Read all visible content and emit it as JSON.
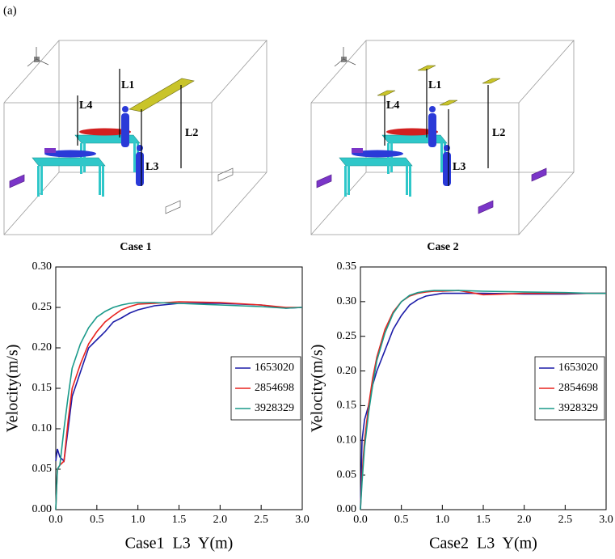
{
  "panel_label": "(a)",
  "diagrams": [
    {
      "caption": "Case 1",
      "line_labels": [
        "L1",
        "L2",
        "L3",
        "L4"
      ]
    },
    {
      "caption": "Case 2",
      "line_labels": [
        "L1",
        "L2",
        "L3",
        "L4"
      ]
    }
  ],
  "chart_data": [
    {
      "type": "line",
      "x_label": "Case1  L3  Y(m)",
      "y_label": "Velocity(m/s)",
      "x": [
        0,
        0.02,
        0.05,
        0.1,
        0.15,
        0.2,
        0.3,
        0.4,
        0.5,
        0.6,
        0.7,
        0.8,
        0.9,
        1.0,
        1.2,
        1.5,
        2.0,
        2.5,
        2.8,
        3.0
      ],
      "series": [
        {
          "name": "1653020",
          "color": "#1c1ca8",
          "values": [
            0.06,
            0.075,
            0.065,
            0.06,
            0.1,
            0.14,
            0.17,
            0.2,
            0.21,
            0.22,
            0.232,
            0.237,
            0.243,
            0.247,
            0.252,
            0.255,
            0.255,
            0.253,
            0.249,
            0.25
          ]
        },
        {
          "name": "2854698",
          "color": "#e8231f",
          "values": [
            0.0,
            0.05,
            0.055,
            0.06,
            0.11,
            0.15,
            0.18,
            0.205,
            0.22,
            0.232,
            0.24,
            0.247,
            0.251,
            0.254,
            0.255,
            0.257,
            0.256,
            0.253,
            0.25,
            0.25
          ]
        },
        {
          "name": "3928329",
          "color": "#1a9a8a",
          "values": [
            0.0,
            0.05,
            0.055,
            0.1,
            0.14,
            0.175,
            0.205,
            0.225,
            0.238,
            0.245,
            0.25,
            0.253,
            0.255,
            0.256,
            0.256,
            0.255,
            0.253,
            0.251,
            0.249,
            0.25
          ]
        }
      ],
      "xlim": [
        0,
        3.0
      ],
      "xticks": [
        {
          "value": 0,
          "label": "0.0"
        },
        {
          "value": 0.5,
          "label": "0.5"
        },
        {
          "value": 1,
          "label": "1.0"
        },
        {
          "value": 1.5,
          "label": "1.5"
        },
        {
          "value": 2,
          "label": "2.0"
        },
        {
          "value": 2.5,
          "label": "2.5"
        },
        {
          "value": 3,
          "label": "3.0"
        }
      ],
      "ylim": [
        0,
        0.3
      ],
      "yticks": [
        {
          "value": 0,
          "label": "0.00"
        },
        {
          "value": 0.05,
          "label": "0.05"
        },
        {
          "value": 0.1,
          "label": "0.10"
        },
        {
          "value": 0.15,
          "label": "0.15"
        },
        {
          "value": 0.2,
          "label": "0.20"
        },
        {
          "value": 0.25,
          "label": "0.25"
        },
        {
          "value": 0.3,
          "label": "0.30"
        }
      ],
      "legend": "center right"
    },
    {
      "type": "line",
      "x_label": "Case2  L3  Y(m)",
      "y_label": "Velocity(m/s)",
      "x": [
        0,
        0.02,
        0.05,
        0.1,
        0.15,
        0.2,
        0.3,
        0.4,
        0.5,
        0.6,
        0.7,
        0.8,
        0.9,
        1.0,
        1.2,
        1.5,
        2.0,
        2.5,
        2.8,
        3.0
      ],
      "series": [
        {
          "name": "1653020",
          "color": "#1c1ca8",
          "values": [
            0.0,
            0.1,
            0.13,
            0.15,
            0.18,
            0.2,
            0.23,
            0.26,
            0.28,
            0.295,
            0.303,
            0.308,
            0.31,
            0.312,
            0.312,
            0.312,
            0.311,
            0.311,
            0.312,
            0.312
          ]
        },
        {
          "name": "2854698",
          "color": "#e8231f",
          "values": [
            0.0,
            0.05,
            0.1,
            0.15,
            0.19,
            0.22,
            0.26,
            0.285,
            0.3,
            0.308,
            0.312,
            0.314,
            0.315,
            0.315,
            0.316,
            0.31,
            0.312,
            0.312,
            0.312,
            0.312
          ]
        },
        {
          "name": "3928329",
          "color": "#1a9a8a",
          "values": [
            0.0,
            0.04,
            0.09,
            0.14,
            0.18,
            0.215,
            0.255,
            0.283,
            0.3,
            0.309,
            0.313,
            0.315,
            0.316,
            0.316,
            0.316,
            0.315,
            0.314,
            0.313,
            0.312,
            0.312
          ]
        }
      ],
      "xlim": [
        0,
        3.0
      ],
      "xticks": [
        {
          "value": 0,
          "label": "0.0"
        },
        {
          "value": 0.5,
          "label": "0.5"
        },
        {
          "value": 1,
          "label": "1.0"
        },
        {
          "value": 1.5,
          "label": "1.5"
        },
        {
          "value": 2,
          "label": "2.0"
        },
        {
          "value": 2.5,
          "label": "2.5"
        },
        {
          "value": 3,
          "label": "3.0"
        }
      ],
      "ylim": [
        0,
        0.35
      ],
      "yticks": [
        {
          "value": 0,
          "label": "0.00"
        },
        {
          "value": 0.05,
          "label": "0.05"
        },
        {
          "value": 0.1,
          "label": "0.10"
        },
        {
          "value": 0.15,
          "label": "0.15"
        },
        {
          "value": 0.2,
          "label": "0.20"
        },
        {
          "value": 0.25,
          "label": "0.25"
        },
        {
          "value": 0.3,
          "label": "0.30"
        },
        {
          "value": 0.35,
          "label": "0.35"
        }
      ],
      "legend": "center right"
    }
  ]
}
